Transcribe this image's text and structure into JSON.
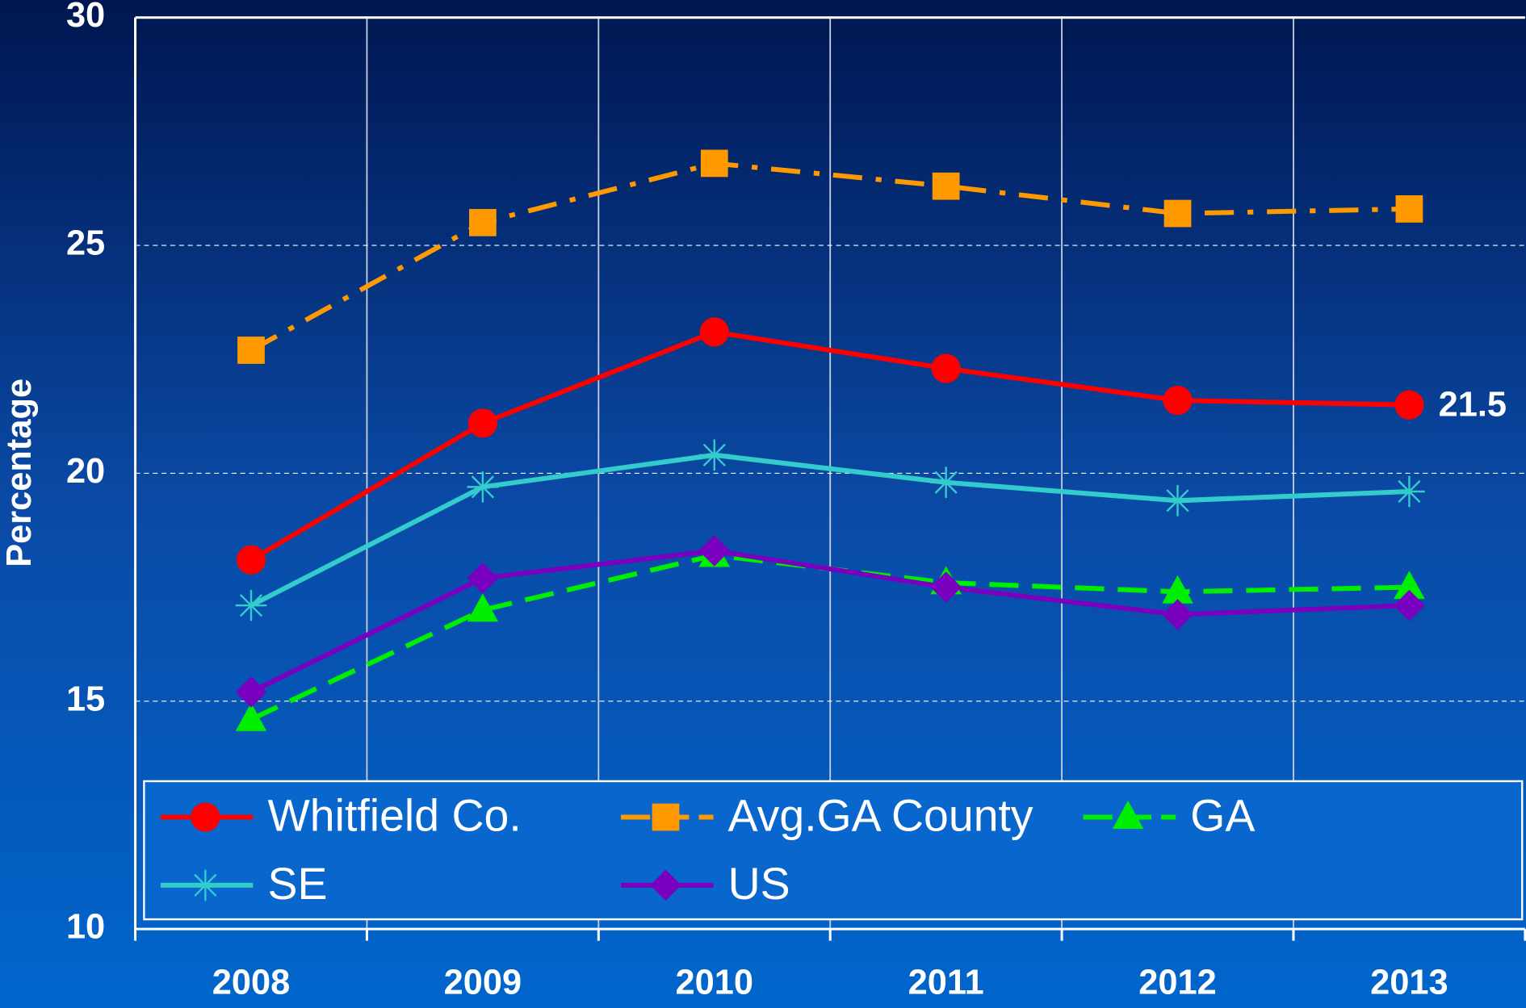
{
  "chart_data": {
    "type": "line",
    "y_label": "Percentage",
    "categories": [
      "2008",
      "2009",
      "2010",
      "2011",
      "2012",
      "2013"
    ],
    "ylim": [
      10,
      30
    ],
    "yticks": [
      10,
      15,
      20,
      25,
      30
    ],
    "grid": true,
    "legend": "bottom",
    "series": [
      {
        "name": "Whitfield Co.",
        "color": "#ff0000",
        "marker": "circle",
        "line_style": "solid",
        "values": [
          18.1,
          21.1,
          23.1,
          22.3,
          21.6,
          21.5
        ],
        "value_labels": [
          null,
          null,
          null,
          null,
          null,
          "21.5"
        ]
      },
      {
        "name": "Avg.GA County",
        "color": "#ff9900",
        "marker": "square",
        "line_style": "dashdot",
        "values": [
          22.7,
          25.5,
          26.8,
          26.3,
          25.7,
          25.8
        ]
      },
      {
        "name": "GA",
        "color": "#00ee00",
        "marker": "triangle",
        "line_style": "dashed",
        "values": [
          14.6,
          17.0,
          18.2,
          17.6,
          17.4,
          17.5
        ]
      },
      {
        "name": "SE",
        "color": "#33cccc",
        "marker": "asterisk",
        "line_style": "solid",
        "values": [
          17.1,
          19.7,
          20.4,
          19.8,
          19.4,
          19.6
        ]
      },
      {
        "name": "US",
        "color": "#7a00c0",
        "marker": "diamond",
        "line_style": "solid",
        "values": [
          15.2,
          17.7,
          18.3,
          17.5,
          16.9,
          17.1
        ]
      }
    ]
  }
}
